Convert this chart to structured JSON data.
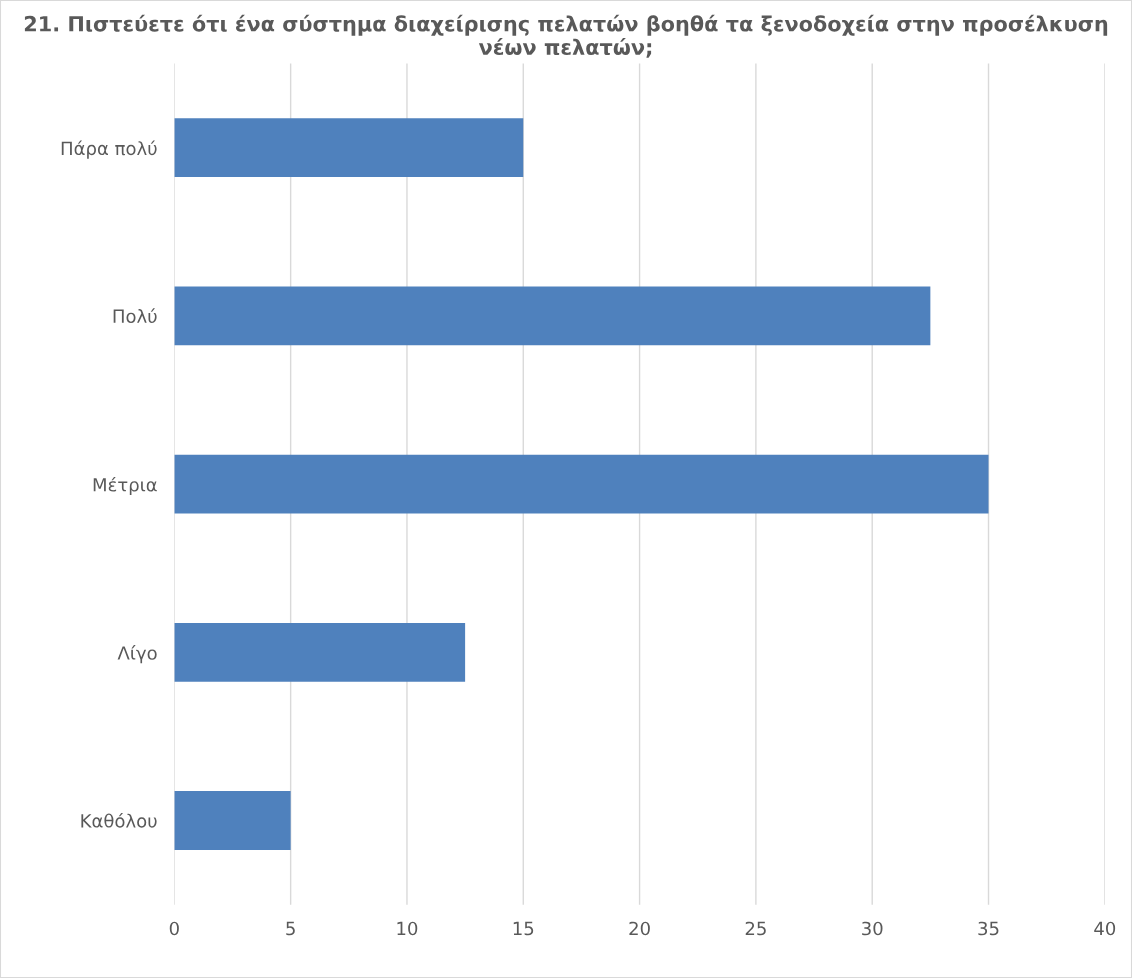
{
  "chart_data": {
    "type": "bar",
    "orientation": "horizontal",
    "title": "21. Πιστεύετε ότι ένα σύστημα διαχείρισης πελατών βοηθά τα ξενοδοχεία στην προσέλκυση νέων πελατών;",
    "categories": [
      "Πάρα πολύ",
      "Πολύ",
      "Μέτρια",
      "Λίγο",
      "Καθόλου"
    ],
    "values": [
      15,
      32.5,
      35,
      12.5,
      5
    ],
    "color": "#4f81bd",
    "xlim": [
      0,
      40
    ],
    "xticks": [
      0,
      5,
      10,
      15,
      20,
      25,
      30,
      35,
      40
    ],
    "grid": "x"
  }
}
